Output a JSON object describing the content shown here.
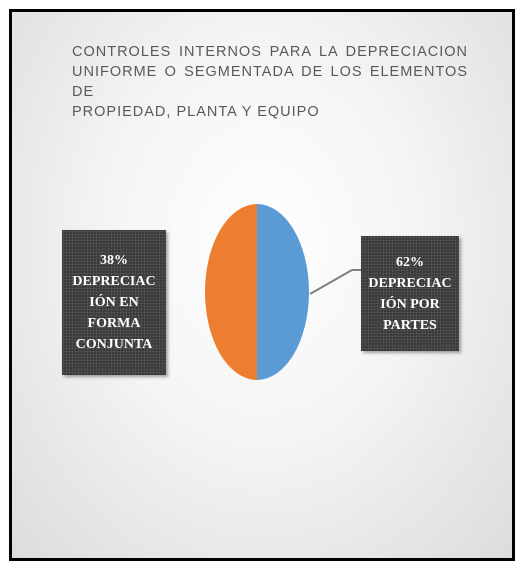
{
  "chart_data": {
    "type": "pie",
    "title_lines": [
      "CONTROLES INTERNOS PARA LA DEPRECIACION",
      "UNIFORME O SEGMENTADA DE LOS ELEMENTOS DE",
      "PROPIEDAD, PLANTA Y EQUIPO"
    ],
    "slices": [
      {
        "label": "DEPRECIACIÓN POR PARTES",
        "percent_text": "62%",
        "color": "#5b9bd5"
      },
      {
        "label": "DEPRECIACIÓN EN FORMA CONJUNTA",
        "percent_text": "38%",
        "color": "#ed7d31"
      }
    ],
    "data_labels": {
      "left": {
        "percent": "38%",
        "lines": [
          "DEPRECIAC",
          "IÓN EN",
          "FORMA",
          "CONJUNTA"
        ]
      },
      "right": {
        "percent": "62%",
        "lines": [
          "DEPRECIAC",
          "IÓN POR",
          "PARTES"
        ]
      }
    },
    "legend": "none"
  }
}
